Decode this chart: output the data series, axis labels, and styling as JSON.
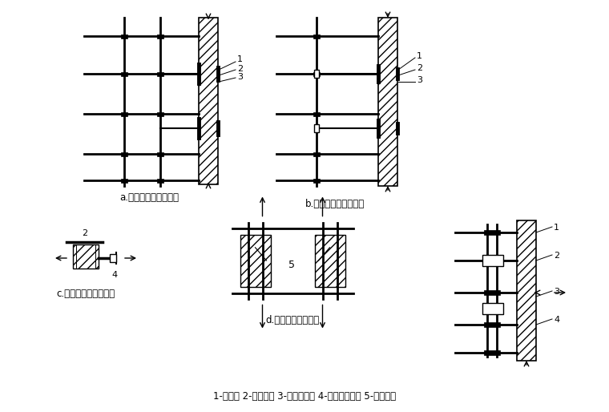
{
  "bg_color": "#ffffff",
  "label_a": "a.双排脚手架（平面）",
  "label_b": "b.单排脚手架（平面）",
  "label_c": "c.脚手架与框架柱连接",
  "label_d": "d.门窗洞口处的连接",
  "legend": "1-垫木； 2-矩锂管； 3-直角扣件； 4-横向水平杆； 5-附加锂管",
  "figure_width": 7.6,
  "figure_height": 5.14
}
